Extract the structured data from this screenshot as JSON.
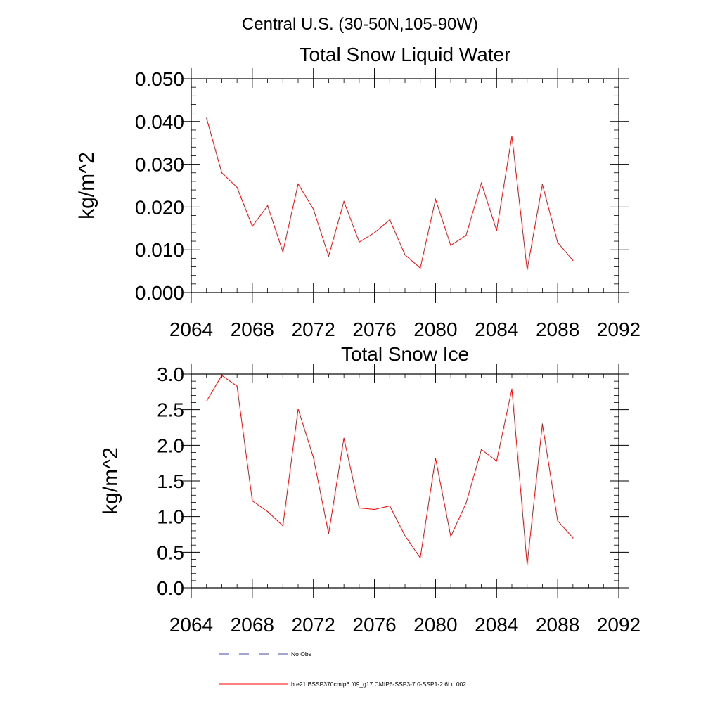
{
  "suptitle": "Central U.S. (30-50N,105-90W)",
  "legend": {
    "no_obs_label": "No Obs",
    "no_obs_color": "#4a4aa0",
    "model_label": "b.e21.BSSP370cmip6.f09_g17.CMIP6-SSP3-7.0-SSP1-2.6Lu.002",
    "model_color": "#ff0000"
  },
  "chart_data": [
    {
      "type": "line",
      "title": "Total Snow Liquid Water",
      "xlabel": "",
      "ylabel": "kg/m^2",
      "xlim": [
        2064,
        2092
      ],
      "ylim": [
        0,
        0.05
      ],
      "xticks": [
        2064,
        2068,
        2072,
        2076,
        2080,
        2084,
        2088,
        2092
      ],
      "xtick_labels": [
        "2064",
        "2068",
        "2072",
        "2076",
        "2080",
        "2084",
        "2088",
        "2092"
      ],
      "yticks": [
        0,
        0.01,
        0.02,
        0.03,
        0.04,
        0.05
      ],
      "ytick_labels": [
        "0.000",
        "0.010",
        "0.020",
        "0.030",
        "0.040",
        "0.050"
      ],
      "grid": false,
      "series": [
        {
          "color": "#ff0000",
          "x": [
            2065,
            2066,
            2067,
            2068,
            2069,
            2070,
            2071,
            2072,
            2073,
            2074,
            2075,
            2076,
            2077,
            2078,
            2079,
            2080,
            2081,
            2082,
            2083,
            2084,
            2085,
            2086,
            2087,
            2088,
            2089
          ],
          "y": [
            0.0408,
            0.028,
            0.0246,
            0.0155,
            0.0203,
            0.0095,
            0.0254,
            0.0195,
            0.0085,
            0.0213,
            0.0118,
            0.014,
            0.017,
            0.0088,
            0.0057,
            0.0218,
            0.011,
            0.0134,
            0.0256,
            0.0145,
            0.0366,
            0.0053,
            0.0253,
            0.0117,
            0.0075
          ]
        }
      ]
    },
    {
      "type": "line",
      "title": "Total Snow Ice",
      "xlabel": "",
      "ylabel": "kg/m^2",
      "xlim": [
        2064,
        2092
      ],
      "ylim": [
        0,
        3.0
      ],
      "xticks": [
        2064,
        2068,
        2072,
        2076,
        2080,
        2084,
        2088,
        2092
      ],
      "xtick_labels": [
        "2064",
        "2068",
        "2072",
        "2076",
        "2080",
        "2084",
        "2088",
        "2092"
      ],
      "yticks": [
        0,
        0.5,
        1.0,
        1.5,
        2.0,
        2.5,
        3.0
      ],
      "ytick_labels": [
        "0.0",
        "0.5",
        "1.0",
        "1.5",
        "2.0",
        "2.5",
        "3.0"
      ],
      "grid": false,
      "series": [
        {
          "color": "#ff0000",
          "x": [
            2065,
            2066,
            2067,
            2068,
            2069,
            2070,
            2071,
            2072,
            2073,
            2074,
            2075,
            2076,
            2077,
            2078,
            2079,
            2080,
            2081,
            2082,
            2083,
            2084,
            2085,
            2086,
            2087,
            2088,
            2089
          ],
          "y": [
            2.62,
            2.98,
            2.83,
            1.22,
            1.07,
            0.87,
            2.51,
            1.83,
            0.76,
            2.1,
            1.12,
            1.1,
            1.15,
            0.73,
            0.42,
            1.82,
            0.72,
            1.19,
            1.94,
            1.78,
            2.79,
            0.32,
            2.3,
            0.94,
            0.7
          ]
        }
      ]
    }
  ]
}
